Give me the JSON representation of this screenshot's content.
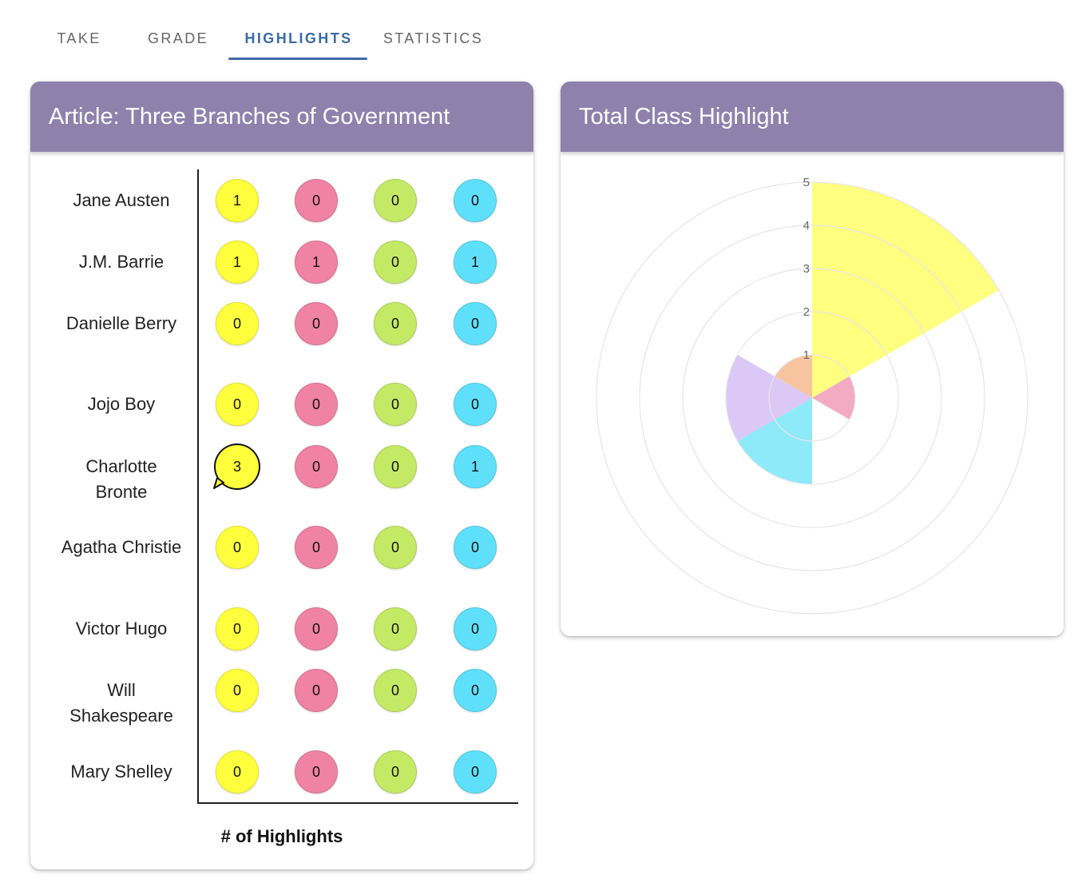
{
  "tabs": [
    {
      "label": "TAKE",
      "active": false
    },
    {
      "label": "GRADE",
      "active": false
    },
    {
      "label": "HIGHLIGHTS",
      "active": true
    },
    {
      "label": "STATISTICS",
      "active": false
    }
  ],
  "highlights_card": {
    "title": "Article: Three Branches of Government",
    "x_label": "# of Highlights",
    "colors": {
      "yellow": "#ffff3d",
      "pink": "#ef82a5",
      "green": "#c4ea65",
      "blue": "#5fe0fa"
    },
    "students": [
      {
        "name": "Jane Austen",
        "counts": [
          1,
          0,
          0,
          0
        ]
      },
      {
        "name": "J.M. Barrie",
        "counts": [
          1,
          1,
          0,
          1
        ]
      },
      {
        "name": "Danielle Berry",
        "counts": [
          0,
          0,
          0,
          0
        ]
      },
      {
        "name": "Jojo Boy",
        "counts": [
          0,
          0,
          0,
          0
        ]
      },
      {
        "name": "Charlotte Bronte",
        "counts": [
          3,
          0,
          0,
          1
        ],
        "comment_on_first": true
      },
      {
        "name": "Agatha Christie",
        "counts": [
          0,
          0,
          0,
          0
        ]
      },
      {
        "name": "Victor Hugo",
        "counts": [
          0,
          0,
          0,
          0
        ]
      },
      {
        "name": "Will Shakespeare",
        "counts": [
          0,
          0,
          0,
          0
        ]
      },
      {
        "name": "Mary Shelley",
        "counts": [
          0,
          0,
          0,
          0
        ]
      }
    ]
  },
  "chart_card": {
    "title": "Total Class Highlight"
  },
  "chart_data": {
    "type": "polar-area",
    "title": "Total Class Highlight",
    "r_ticks": [
      "1",
      "2",
      "3",
      "4",
      "5"
    ],
    "r_max": 5,
    "grid": true,
    "segments": [
      {
        "color": "#ffff80",
        "value": 5
      },
      {
        "color": "#f3aac3",
        "value": 1
      },
      {
        "color": "#ffffff",
        "value": 2
      },
      {
        "color": "#8eeaf9",
        "value": 2
      },
      {
        "color": "#dcc8f7",
        "value": 2
      },
      {
        "color": "#f6c59f",
        "value": 1
      }
    ]
  }
}
